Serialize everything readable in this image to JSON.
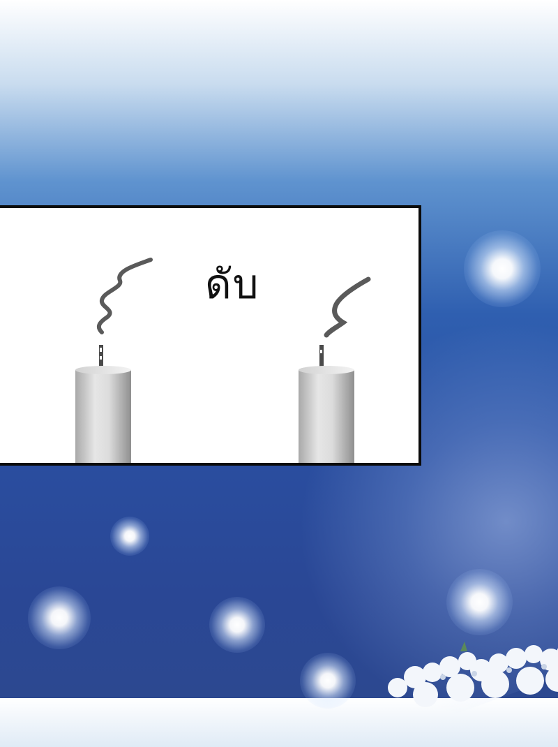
{
  "panel": {
    "sound_effect_text": "ดับ"
  },
  "scene": {
    "candle_count": 2,
    "candle_state": "extinguished",
    "colors": {
      "sky_top": "#ffffff",
      "sky_mid": "#5f93cf",
      "sky_bottom": "#2c4890",
      "panel_background": "#ffffff",
      "panel_border": "#0b0b0b",
      "candle_body": "#d9d9d9",
      "smoke": "#555555"
    }
  }
}
